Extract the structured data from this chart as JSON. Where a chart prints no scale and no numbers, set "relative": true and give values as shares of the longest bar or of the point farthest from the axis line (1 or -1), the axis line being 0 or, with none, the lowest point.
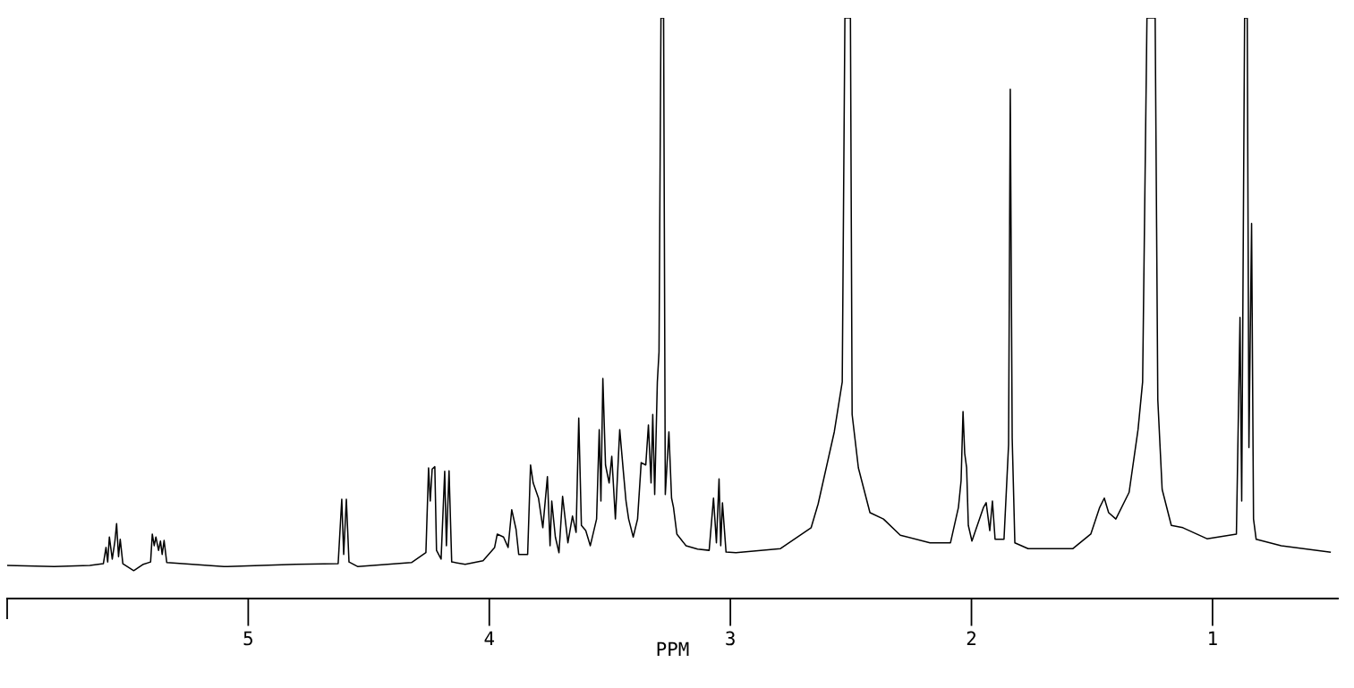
{
  "chart_data": {
    "type": "line",
    "xlabel": "PPM",
    "relative": true,
    "xlim": [
      6.0,
      0.48
    ],
    "xticks": [
      5,
      4,
      3,
      2,
      1
    ],
    "grid": false,
    "marker": "none",
    "line_style": "solid",
    "series": [
      {
        "color": "#000000",
        "x": [
          6.0,
          5.805,
          5.657,
          5.601,
          5.59,
          5.583,
          5.576,
          5.564,
          5.553,
          5.546,
          5.538,
          5.531,
          5.52,
          5.475,
          5.435,
          5.405,
          5.398,
          5.39,
          5.383,
          5.372,
          5.364,
          5.357,
          5.349,
          5.338,
          5.101,
          4.804,
          4.627,
          4.612,
          4.604,
          4.593,
          4.582,
          4.545,
          4.323,
          4.263,
          4.252,
          4.245,
          4.237,
          4.226,
          4.219,
          4.2,
          4.185,
          4.178,
          4.167,
          4.156,
          4.1,
          4.026,
          3.978,
          3.967,
          3.941,
          3.922,
          3.907,
          3.889,
          3.878,
          3.841,
          3.829,
          3.818,
          3.796,
          3.778,
          3.759,
          3.748,
          3.741,
          3.726,
          3.711,
          3.696,
          3.674,
          3.655,
          3.64,
          3.629,
          3.618,
          3.6,
          3.581,
          3.555,
          3.544,
          3.537,
          3.529,
          3.518,
          3.503,
          3.492,
          3.477,
          3.459,
          3.444,
          3.433,
          3.422,
          3.403,
          3.385,
          3.37,
          3.351,
          3.34,
          3.329,
          3.322,
          3.314,
          3.303,
          3.296,
          3.288,
          3.277,
          3.27,
          3.255,
          3.244,
          3.236,
          3.222,
          3.184,
          3.136,
          3.088,
          3.07,
          3.058,
          3.047,
          3.04,
          3.033,
          3.018,
          2.977,
          2.792,
          2.665,
          2.636,
          2.569,
          2.536,
          2.525,
          2.502,
          2.495,
          2.469,
          2.421,
          2.365,
          2.295,
          2.172,
          2.087,
          2.054,
          2.043,
          2.035,
          2.028,
          2.02,
          2.013,
          1.998,
          1.95,
          1.939,
          1.924,
          1.913,
          1.902,
          1.865,
          1.846,
          1.839,
          1.831,
          1.82,
          1.765,
          1.579,
          1.505,
          1.468,
          1.449,
          1.431,
          1.401,
          1.346,
          1.309,
          1.29,
          1.272,
          1.238,
          1.227,
          1.209,
          1.171,
          1.123,
          1.023,
          0.901,
          0.886,
          0.879,
          0.867,
          0.856,
          0.849,
          0.838,
          0.83,
          0.819,
          0.715,
          0.512
        ],
        "values": [
          0.057,
          0.055,
          0.057,
          0.06,
          0.088,
          0.063,
          0.106,
          0.068,
          0.099,
          0.129,
          0.072,
          0.102,
          0.06,
          0.048,
          0.059,
          0.063,
          0.111,
          0.091,
          0.106,
          0.083,
          0.099,
          0.076,
          0.1,
          0.062,
          0.055,
          0.059,
          0.06,
          0.171,
          0.076,
          0.171,
          0.063,
          0.055,
          0.062,
          0.079,
          0.225,
          0.168,
          0.223,
          0.227,
          0.083,
          0.068,
          0.219,
          0.091,
          0.22,
          0.063,
          0.059,
          0.065,
          0.088,
          0.111,
          0.106,
          0.088,
          0.153,
          0.119,
          0.076,
          0.076,
          0.23,
          0.199,
          0.173,
          0.122,
          0.21,
          0.091,
          0.168,
          0.106,
          0.079,
          0.176,
          0.096,
          0.142,
          0.114,
          0.311,
          0.126,
          0.117,
          0.091,
          0.137,
          0.291,
          0.168,
          0.379,
          0.23,
          0.199,
          0.245,
          0.137,
          0.291,
          0.219,
          0.168,
          0.137,
          0.106,
          0.137,
          0.234,
          0.23,
          0.299,
          0.199,
          0.317,
          0.179,
          0.373,
          0.425,
          1.0,
          1.0,
          0.179,
          0.287,
          0.173,
          0.157,
          0.111,
          0.091,
          0.085,
          0.083,
          0.173,
          0.096,
          0.206,
          0.091,
          0.165,
          0.08,
          0.079,
          0.086,
          0.122,
          0.163,
          0.287,
          0.373,
          1.0,
          1.0,
          0.317,
          0.225,
          0.148,
          0.137,
          0.109,
          0.096,
          0.096,
          0.157,
          0.203,
          0.322,
          0.25,
          0.225,
          0.126,
          0.099,
          0.157,
          0.165,
          0.117,
          0.168,
          0.102,
          0.102,
          0.265,
          0.877,
          0.276,
          0.096,
          0.086,
          0.086,
          0.111,
          0.157,
          0.173,
          0.148,
          0.137,
          0.183,
          0.291,
          0.373,
          1.0,
          1.0,
          0.342,
          0.188,
          0.126,
          0.122,
          0.103,
          0.111,
          0.484,
          0.168,
          1.0,
          1.0,
          0.26,
          0.646,
          0.137,
          0.102,
          0.091,
          0.08
        ]
      }
    ]
  }
}
